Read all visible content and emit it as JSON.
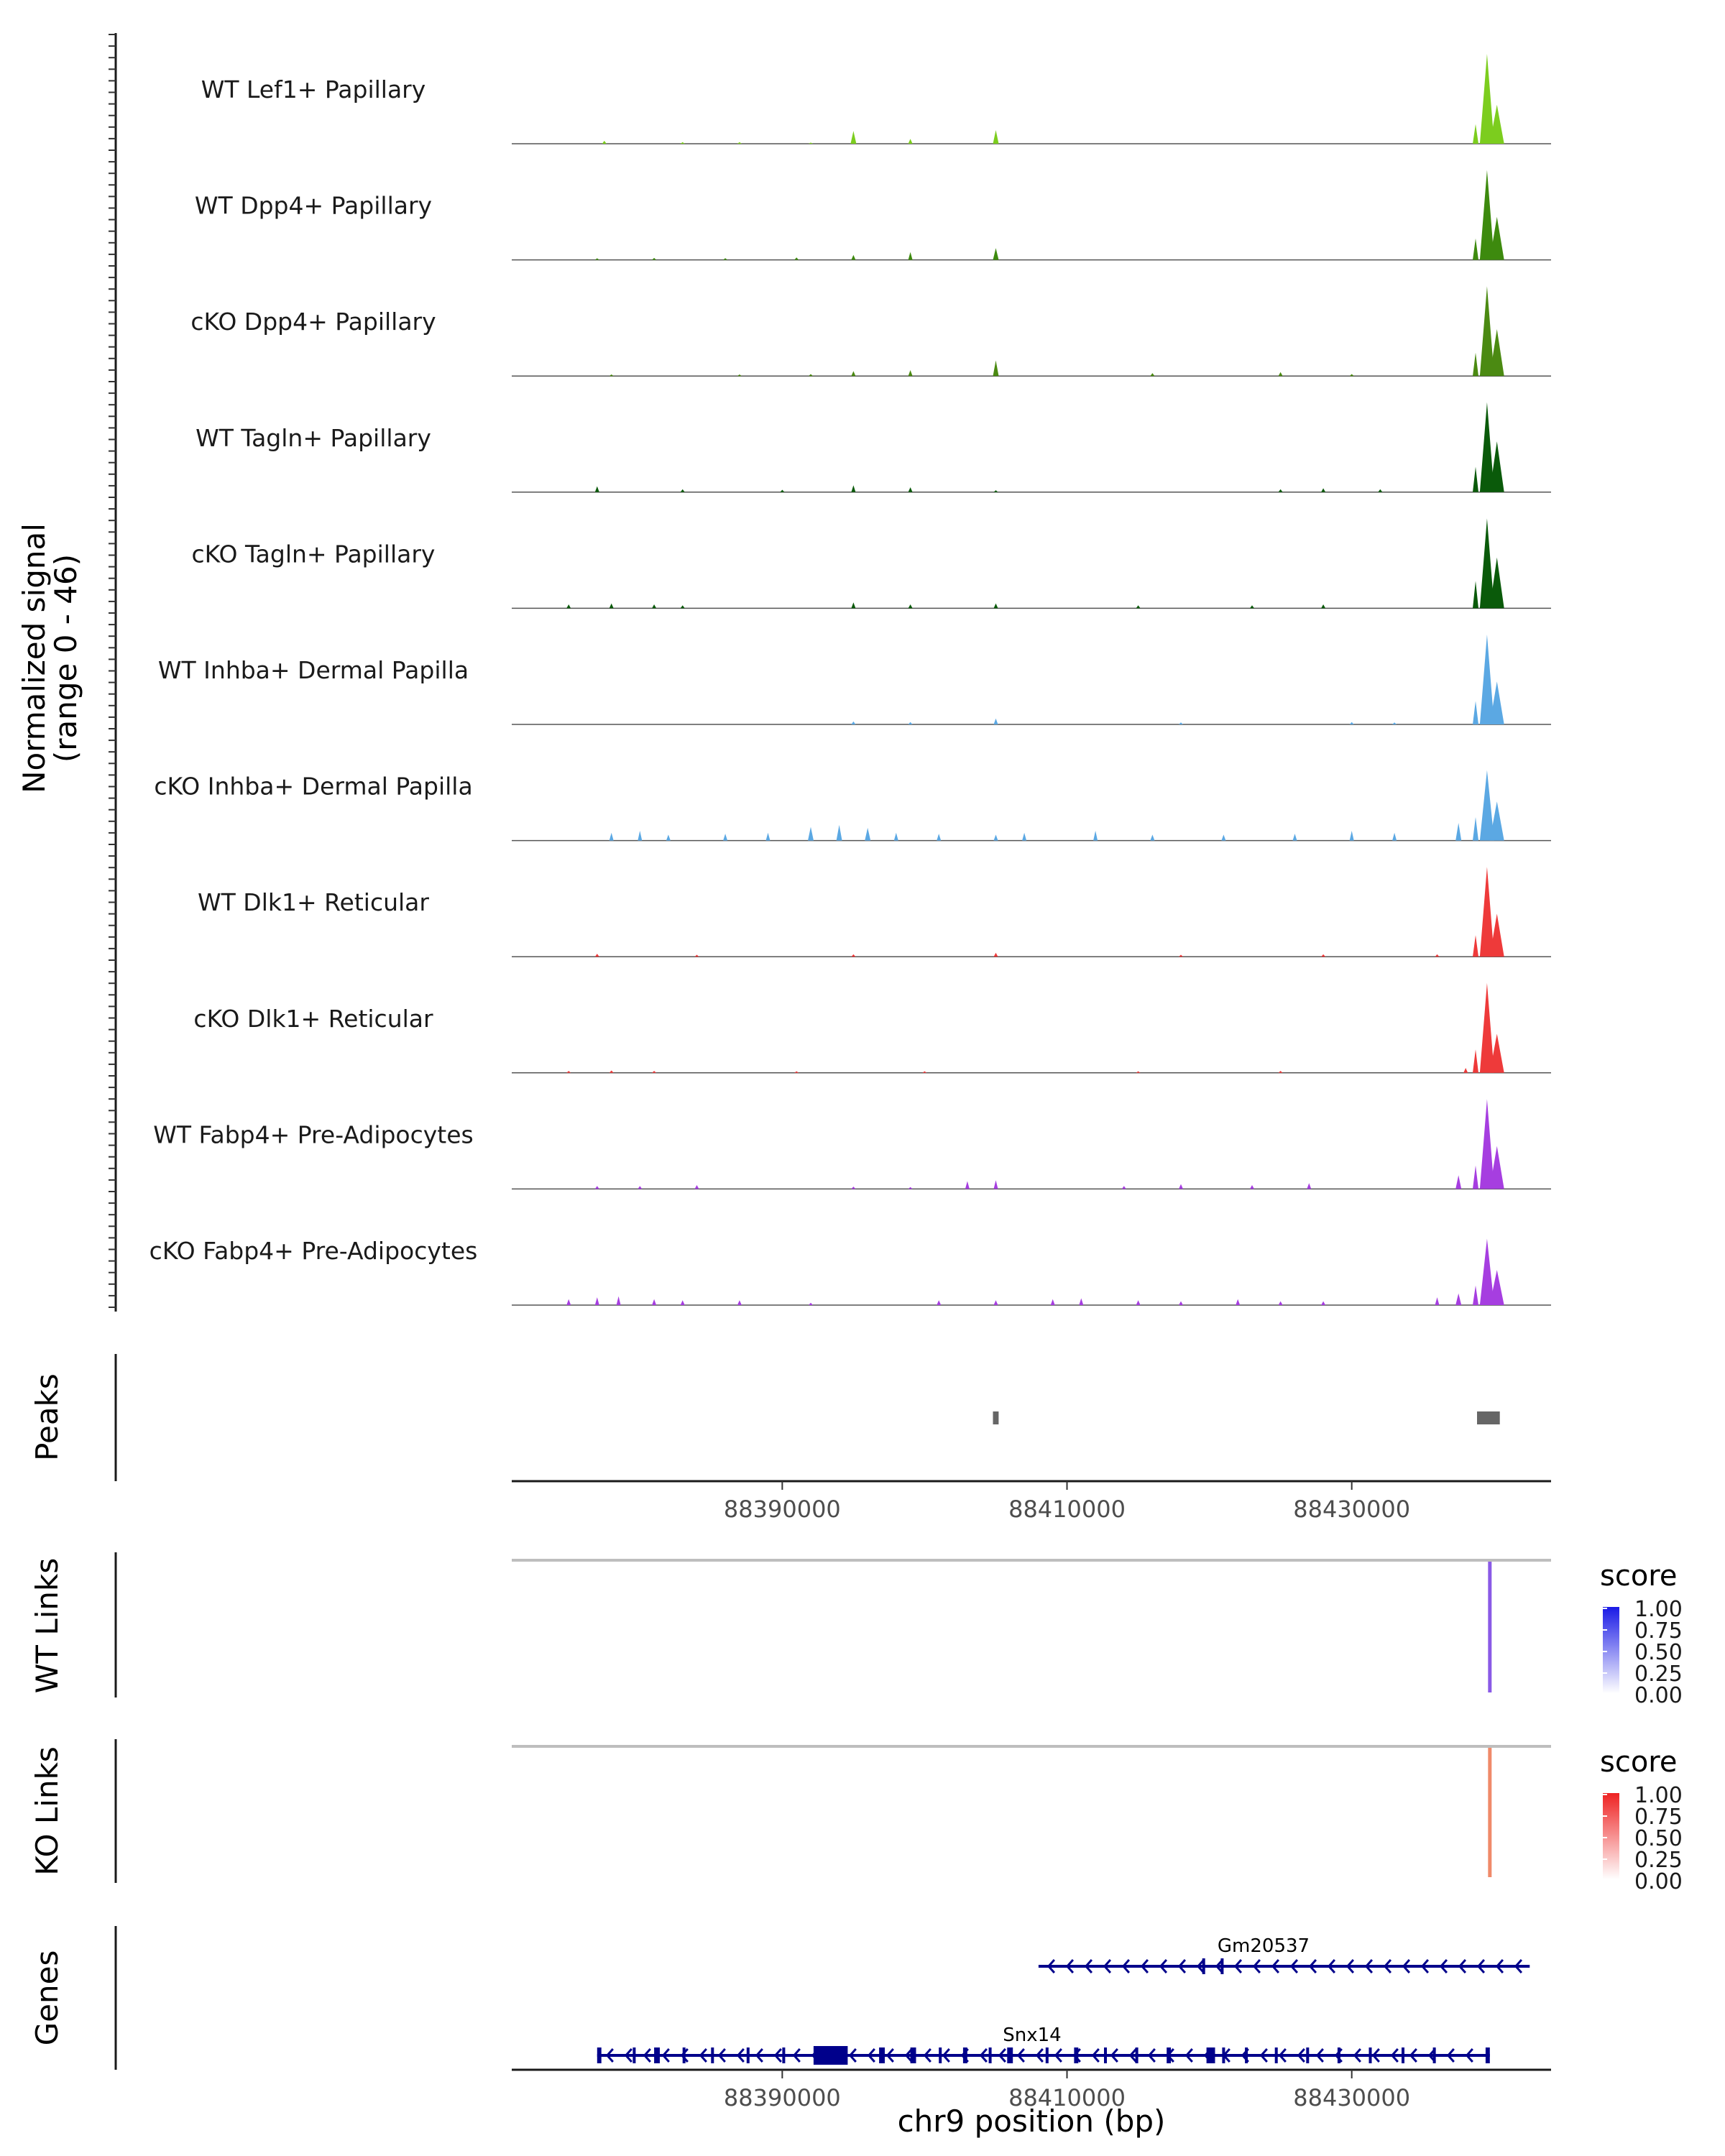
{
  "chart_data": {
    "type": "area",
    "title": "",
    "ylabel": "Normalized signal\n(range 0 - 46)",
    "xlabel": "chr9 position (bp)",
    "xlim": [
      88371000,
      88444000
    ],
    "ylim": [
      0,
      46
    ],
    "x_ticks": [
      88390000,
      88410000,
      88430000
    ],
    "x_tick_labels": [
      "88390000",
      "88410000",
      "88430000"
    ],
    "tracks": [
      {
        "name": "WT Lef1+ Papillary",
        "color": "#7ccd1e",
        "peaks": [
          [
            88377500,
            1.5
          ],
          [
            88383000,
            0.8
          ],
          [
            88387000,
            0.8
          ],
          [
            88392000,
            0.6
          ],
          [
            88395000,
            6.5
          ],
          [
            88399000,
            2.5
          ],
          [
            88405000,
            7.0
          ],
          [
            88439500,
            46
          ],
          [
            88440200,
            20
          ],
          [
            88438700,
            10
          ]
        ]
      },
      {
        "name": "WT Dpp4+ Papillary",
        "color": "#3d8a0e",
        "peaks": [
          [
            88377000,
            0.8
          ],
          [
            88381000,
            1.0
          ],
          [
            88386000,
            0.9
          ],
          [
            88391000,
            1.2
          ],
          [
            88395000,
            2.5
          ],
          [
            88399000,
            4.0
          ],
          [
            88405000,
            6.0
          ],
          [
            88439500,
            46
          ],
          [
            88440200,
            22
          ],
          [
            88438700,
            11
          ]
        ]
      },
      {
        "name": "cKO Dpp4+ Papillary",
        "color": "#4b8a12",
        "peaks": [
          [
            88378000,
            0.8
          ],
          [
            88387000,
            0.8
          ],
          [
            88392000,
            1.0
          ],
          [
            88395000,
            2.5
          ],
          [
            88399000,
            3.0
          ],
          [
            88405000,
            8.0
          ],
          [
            88416000,
            1.5
          ],
          [
            88425000,
            2.0
          ],
          [
            88430000,
            1.0
          ],
          [
            88439500,
            46
          ],
          [
            88440200,
            24
          ],
          [
            88438700,
            12
          ]
        ]
      },
      {
        "name": "WT Tagln+ Papillary",
        "color": "#0a5a0a",
        "peaks": [
          [
            88377000,
            3.0
          ],
          [
            88383000,
            1.5
          ],
          [
            88390000,
            1.2
          ],
          [
            88395000,
            3.5
          ],
          [
            88399000,
            2.5
          ],
          [
            88405000,
            1.0
          ],
          [
            88425000,
            1.5
          ],
          [
            88428000,
            2.0
          ],
          [
            88432000,
            1.5
          ],
          [
            88439500,
            46
          ],
          [
            88440200,
            26
          ],
          [
            88438700,
            13
          ]
        ]
      },
      {
        "name": "cKO Tagln+ Papillary",
        "color": "#0a5a0a",
        "peaks": [
          [
            88375000,
            2.0
          ],
          [
            88378000,
            2.5
          ],
          [
            88381000,
            2.0
          ],
          [
            88383000,
            1.5
          ],
          [
            88395000,
            3.0
          ],
          [
            88399000,
            2.0
          ],
          [
            88405000,
            2.5
          ],
          [
            88415000,
            1.5
          ],
          [
            88423000,
            1.5
          ],
          [
            88428000,
            2.0
          ],
          [
            88439500,
            46
          ],
          [
            88440200,
            26
          ],
          [
            88438700,
            14
          ]
        ]
      },
      {
        "name": "WT Inhba+ Dermal Papilla",
        "color": "#5ba8e3",
        "peaks": [
          [
            88395000,
            1.5
          ],
          [
            88399000,
            1.2
          ],
          [
            88405000,
            3.0
          ],
          [
            88418000,
            1.0
          ],
          [
            88430000,
            1.2
          ],
          [
            88433000,
            1.0
          ],
          [
            88439500,
            46
          ],
          [
            88440200,
            22
          ],
          [
            88438700,
            12
          ]
        ]
      },
      {
        "name": "cKO Inhba+ Dermal Papilla",
        "color": "#5ba8e3",
        "peaks": [
          [
            88378000,
            4.0
          ],
          [
            88380000,
            5.0
          ],
          [
            88382000,
            3.0
          ],
          [
            88386000,
            3.5
          ],
          [
            88389000,
            4.0
          ],
          [
            88392000,
            7.0
          ],
          [
            88394000,
            8.0
          ],
          [
            88396000,
            6.5
          ],
          [
            88398000,
            4.0
          ],
          [
            88401000,
            3.5
          ],
          [
            88405000,
            3.0
          ],
          [
            88407000,
            4.0
          ],
          [
            88412000,
            5.0
          ],
          [
            88416000,
            3.0
          ],
          [
            88421000,
            3.0
          ],
          [
            88426000,
            3.5
          ],
          [
            88430000,
            5.0
          ],
          [
            88433000,
            4.0
          ],
          [
            88437500,
            9.0
          ],
          [
            88439500,
            36
          ],
          [
            88440200,
            20
          ],
          [
            88438700,
            12
          ]
        ]
      },
      {
        "name": "WT Dlk1+ Reticular",
        "color": "#ee3a3a",
        "peaks": [
          [
            88377000,
            1.5
          ],
          [
            88384000,
            1.0
          ],
          [
            88395000,
            1.2
          ],
          [
            88405000,
            2.0
          ],
          [
            88418000,
            1.0
          ],
          [
            88428000,
            1.2
          ],
          [
            88436000,
            1.2
          ],
          [
            88439500,
            46
          ],
          [
            88440200,
            22
          ],
          [
            88438700,
            11
          ]
        ]
      },
      {
        "name": "cKO Dlk1+ Reticular",
        "color": "#ee3a3a",
        "peaks": [
          [
            88375000,
            1.0
          ],
          [
            88378000,
            1.2
          ],
          [
            88381000,
            1.0
          ],
          [
            88391000,
            0.8
          ],
          [
            88400000,
            0.8
          ],
          [
            88415000,
            0.8
          ],
          [
            88425000,
            1.0
          ],
          [
            88438000,
            2.5
          ],
          [
            88439500,
            46
          ],
          [
            88440200,
            20
          ],
          [
            88438700,
            12
          ]
        ]
      },
      {
        "name": "WT Fabp4+ Pre-Adipocytes",
        "color": "#a63ee0",
        "peaks": [
          [
            88377000,
            1.5
          ],
          [
            88380000,
            1.5
          ],
          [
            88384000,
            2.0
          ],
          [
            88395000,
            1.2
          ],
          [
            88399000,
            1.0
          ],
          [
            88403000,
            4.0
          ],
          [
            88405000,
            4.5
          ],
          [
            88414000,
            1.5
          ],
          [
            88418000,
            2.5
          ],
          [
            88423000,
            2.0
          ],
          [
            88427000,
            3.0
          ],
          [
            88437500,
            7.0
          ],
          [
            88439500,
            46
          ],
          [
            88440200,
            22
          ],
          [
            88438700,
            12
          ]
        ]
      },
      {
        "name": "cKO Fabp4+ Pre-Adipocytes",
        "color": "#a63ee0",
        "peaks": [
          [
            88375000,
            3.0
          ],
          [
            88377000,
            4.0
          ],
          [
            88378500,
            4.5
          ],
          [
            88381000,
            3.0
          ],
          [
            88383000,
            2.5
          ],
          [
            88387000,
            2.5
          ],
          [
            88392000,
            1.2
          ],
          [
            88401000,
            2.5
          ],
          [
            88405000,
            2.5
          ],
          [
            88409000,
            3.0
          ],
          [
            88411000,
            3.5
          ],
          [
            88415000,
            2.5
          ],
          [
            88418000,
            2.0
          ],
          [
            88422000,
            3.0
          ],
          [
            88425000,
            2.0
          ],
          [
            88428000,
            2.0
          ],
          [
            88436000,
            4.0
          ],
          [
            88437500,
            6.0
          ],
          [
            88439500,
            34
          ],
          [
            88440200,
            18
          ],
          [
            88438700,
            10
          ]
        ]
      }
    ],
    "peaks_track": {
      "title": "Peaks",
      "color": "#666666",
      "regions": [
        [
          88404800,
          88405200
        ],
        [
          88438800,
          88440400
        ]
      ]
    },
    "wt_links": {
      "title": "WT Links",
      "baseline_color": "#bebebe",
      "link_color": "#8a5ae6",
      "links": [
        {
          "pos": 88439700,
          "score": 0.6
        }
      ],
      "legend": {
        "title": "score",
        "labels": [
          "1.00",
          "0.75",
          "0.50",
          "0.25",
          "0.00"
        ],
        "color_high": "#1a1ae6",
        "color_low": "#ffffff"
      }
    },
    "ko_links": {
      "title": "KO Links",
      "baseline_color": "#bebebe",
      "link_color": "#f08a6a",
      "links": [
        {
          "pos": 88439700,
          "score": 0.55
        }
      ],
      "legend": {
        "title": "score",
        "labels": [
          "1.00",
          "0.75",
          "0.50",
          "0.25",
          "0.00"
        ],
        "color_high": "#ee2222",
        "color_low": "#ffffff"
      }
    },
    "genes": {
      "title": "Genes",
      "color": "#00008b",
      "items": [
        {
          "name": "Gm20537",
          "start": 88408000,
          "end": 88442500,
          "strand": "-",
          "exons": [
            [
              88419500,
              88419700
            ],
            [
              88420800,
              88421000
            ]
          ]
        },
        {
          "name": "Snx14",
          "start": 88377000,
          "end": 88439700,
          "strand": "-",
          "exons": [
            [
              88377000,
              88377300
            ],
            [
              88379500,
              88379700
            ],
            [
              88381000,
              88381400
            ],
            [
              88383000,
              88383200
            ],
            [
              88385000,
              88385200
            ],
            [
              88387500,
              88387700
            ],
            [
              88390000,
              88390200
            ],
            [
              88392200,
              88394600
            ],
            [
              88396800,
              88397200
            ],
            [
              88399000,
              88399400
            ],
            [
              88401000,
              88401200
            ],
            [
              88402700,
              88403000
            ],
            [
              88404500,
              88404700
            ],
            [
              88405800,
              88406200
            ],
            [
              88408500,
              88408700
            ],
            [
              88410500,
              88410800
            ],
            [
              88412600,
              88412800
            ],
            [
              88414800,
              88415000
            ],
            [
              88417000,
              88417300
            ],
            [
              88419800,
              88420400
            ],
            [
              88420900,
              88421100
            ],
            [
              88422500,
              88422700
            ],
            [
              88424600,
              88424800
            ],
            [
              88426800,
              88427000
            ],
            [
              88429000,
              88429200
            ],
            [
              88431200,
              88431400
            ],
            [
              88433500,
              88433700
            ],
            [
              88435700,
              88435900
            ],
            [
              88439400,
              88439700
            ]
          ]
        }
      ]
    }
  }
}
